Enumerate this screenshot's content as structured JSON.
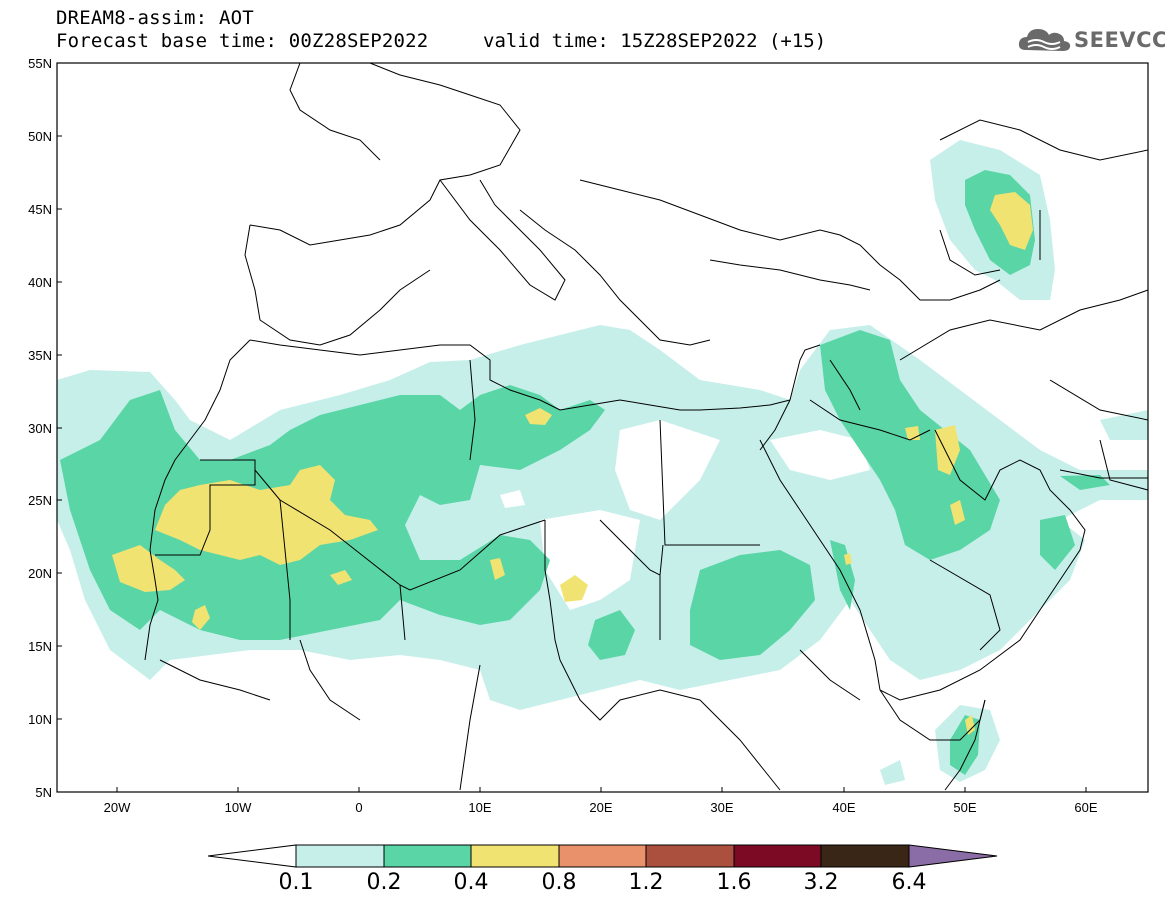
{
  "header": {
    "title_line1": "DREAM8-assim: AOT",
    "title_line2": "Forecast base time: 00Z28SEP2022",
    "valid_time": "valid time: 15Z28SEP2022 (+15)"
  },
  "logo": {
    "text": "SEEVCCC",
    "icon": "cloud-icon"
  },
  "map": {
    "projection": "lat-lon",
    "lon_range": [
      -25,
      65
    ],
    "lat_range": [
      5,
      55
    ],
    "lat_labels": [
      "55N",
      "50N",
      "45N",
      "40N",
      "35N",
      "30N",
      "25N",
      "20N",
      "15N",
      "10N",
      "5N"
    ],
    "lon_labels": [
      "20W",
      "10W",
      "0",
      "10E",
      "20E",
      "30E",
      "40E",
      "50E",
      "60E"
    ],
    "field": "AOT (aerosol optical thickness)"
  },
  "colorbar": {
    "labels": [
      "0.1",
      "0.2",
      "0.4",
      "0.8",
      "1.2",
      "1.6",
      "3.2",
      "6.4"
    ],
    "colors": [
      "#c6efea",
      "#5ad5a6",
      "#f1e372",
      "#e8916a",
      "#ab4f3f",
      "#7c0a25",
      "#3a2616",
      "#8a6ca7"
    ]
  },
  "colors": {
    "level1": "#c6efea",
    "level2": "#5ad5a6",
    "level3": "#f1e372",
    "borders": "#000000"
  }
}
